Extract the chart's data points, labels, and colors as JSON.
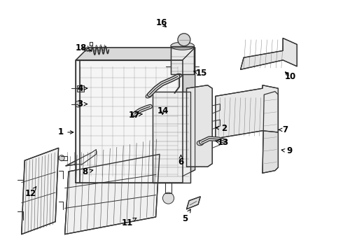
{
  "bg_color": "#ffffff",
  "line_color": "#333333",
  "fig_width": 4.9,
  "fig_height": 3.6,
  "dpi": 100,
  "labels": {
    "1": [
      0.155,
      0.5,
      0.195,
      0.5
    ],
    "2": [
      0.655,
      0.51,
      0.615,
      0.51
    ],
    "3": [
      0.215,
      0.595,
      0.255,
      0.595
    ],
    "4": [
      0.215,
      0.64,
      0.255,
      0.64
    ],
    "5": [
      0.548,
      0.23,
      0.548,
      0.258
    ],
    "6": [
      0.53,
      0.41,
      0.53,
      0.435
    ],
    "7": [
      0.855,
      0.51,
      0.83,
      0.51
    ],
    "8": [
      0.238,
      0.37,
      0.268,
      0.378
    ],
    "9": [
      0.87,
      0.44,
      0.845,
      0.44
    ],
    "10": [
      0.87,
      0.68,
      0.845,
      0.68
    ],
    "11": [
      0.36,
      0.215,
      0.385,
      0.228
    ],
    "12": [
      0.06,
      0.31,
      0.075,
      0.33
    ],
    "13": [
      0.66,
      0.47,
      0.635,
      0.475
    ],
    "14": [
      0.475,
      0.57,
      0.475,
      0.548
    ],
    "15": [
      0.59,
      0.69,
      0.565,
      0.695
    ],
    "16": [
      0.47,
      0.845,
      0.495,
      0.83
    ],
    "17": [
      0.388,
      0.555,
      0.412,
      0.558
    ],
    "18": [
      0.215,
      0.765,
      0.25,
      0.758
    ]
  }
}
